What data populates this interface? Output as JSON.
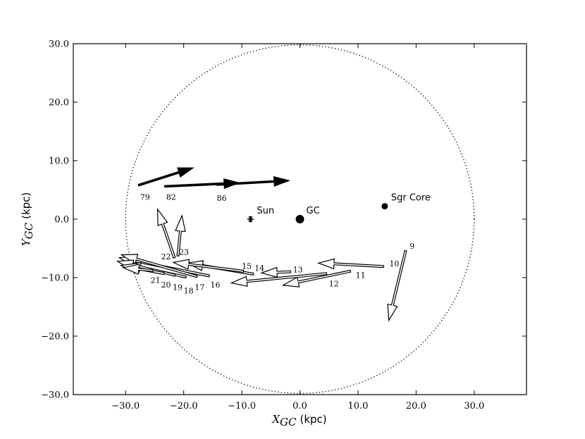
{
  "chart_data": {
    "type": "scatter",
    "x_axis": {
      "label_symbol": "X",
      "label_subscript": "GC",
      "label_unit": "(kpc)",
      "xlim": [
        -39,
        39
      ],
      "ticks": [
        -30,
        -20,
        -10,
        0,
        10,
        20,
        30
      ],
      "tick_labels": [
        "−30.0",
        "−20.0",
        "−10.0",
        "0.0",
        "10.0",
        "20.0",
        "30.0"
      ]
    },
    "y_axis": {
      "label_symbol": "Y",
      "label_subscript": "GC",
      "label_unit": "(kpc)",
      "ylim": [
        -30,
        30
      ],
      "ticks": [
        -30,
        -20,
        -10,
        0,
        10,
        20,
        30
      ],
      "tick_labels": [
        "−30.0",
        "−20.0",
        "−10.0",
        "0.0",
        "10.0",
        "20.0",
        "30.0"
      ]
    },
    "grid": false,
    "circle": {
      "center": [
        0,
        0
      ],
      "radius": 30,
      "style": "dotted"
    },
    "points": [
      {
        "label": "Sun",
        "x": -8.5,
        "y": 0,
        "marker": "asterisk"
      },
      {
        "label": "GC",
        "x": 0,
        "y": 0,
        "marker": "large-dot"
      },
      {
        "label": "Sgr Core",
        "x": 14.6,
        "y": 2.2,
        "marker": "dot"
      }
    ],
    "filled_arrows": [
      {
        "label": "79",
        "x": -27.8,
        "y": 5.8,
        "x2": -18.3,
        "y2": 8.8
      },
      {
        "label": "82",
        "x": -23.3,
        "y": 5.6,
        "x2": -10.4,
        "y2": 6.2
      },
      {
        "label": "86",
        "x": -14.3,
        "y": 5.9,
        "x2": -1.8,
        "y2": 6.6
      }
    ],
    "open_arrows": [
      {
        "label": "9",
        "x": 18.2,
        "y": -5.4,
        "x2": 15.3,
        "y2": -17.3
      },
      {
        "label": "10",
        "x": 14.4,
        "y": -8.1,
        "x2": 3.2,
        "y2": -7.5
      },
      {
        "label": "11",
        "x": 8.7,
        "y": -8.9,
        "x2": -2.9,
        "y2": -11.3
      },
      {
        "label": "12",
        "x": 4.6,
        "y": -9.3,
        "x2": -11.8,
        "y2": -10.9
      },
      {
        "label": "13",
        "x": -1.6,
        "y": -9.0,
        "x2": -6.6,
        "y2": -9.2
      },
      {
        "label": "14",
        "x": -8.0,
        "y": -9.4,
        "x2": -19.4,
        "y2": -7.5
      },
      {
        "label": "15",
        "x": -9.7,
        "y": -8.9,
        "x2": -21.8,
        "y2": -7.4
      },
      {
        "label": "16",
        "x": -15.6,
        "y": -9.7,
        "x2": -31.1,
        "y2": -6.6
      },
      {
        "label": "17",
        "x": -17.7,
        "y": -9.8,
        "x2": -30.7,
        "y2": -6.1
      },
      {
        "label": "18",
        "x": -19.6,
        "y": -9.9,
        "x2": -30.1,
        "y2": -7.7
      },
      {
        "label": "19",
        "x": -21.5,
        "y": -9.6,
        "x2": -31.4,
        "y2": -7.2
      },
      {
        "label": "20",
        "x": -23.4,
        "y": -9.3,
        "x2": -30.8,
        "y2": -7.9
      },
      {
        "label": "21",
        "x": -25.3,
        "y": -8.8,
        "x2": -30.4,
        "y2": -8.3
      },
      {
        "label": "22",
        "x": -21.6,
        "y": -6.6,
        "x2": -24.5,
        "y2": 1.7
      },
      {
        "label": "23",
        "x": -21.0,
        "y": -6.3,
        "x2": -20.3,
        "y2": 0.6
      }
    ],
    "label_positions": {
      "79": [
        -27.5,
        3.8
      ],
      "82": [
        -23.0,
        3.8
      ],
      "86": [
        -14.3,
        3.6
      ],
      "9": [
        18.9,
        -4.6
      ],
      "10": [
        15.4,
        -7.6
      ],
      "11": [
        9.6,
        -9.6
      ],
      "12": [
        5.0,
        -11.0
      ],
      "13": [
        -1.2,
        -8.6
      ],
      "14": [
        -7.8,
        -8.4
      ],
      "15": [
        -10.0,
        -8.0
      ],
      "16": [
        -15.4,
        -11.2
      ],
      "17": [
        -18.1,
        -11.6
      ],
      "18": [
        -20.0,
        -12.2
      ],
      "19": [
        -21.9,
        -11.6
      ],
      "20": [
        -23.9,
        -11.2
      ],
      "21": [
        -25.7,
        -10.4
      ],
      "22": [
        -23.9,
        -6.4
      ],
      "23": [
        -20.8,
        -5.6
      ]
    }
  }
}
